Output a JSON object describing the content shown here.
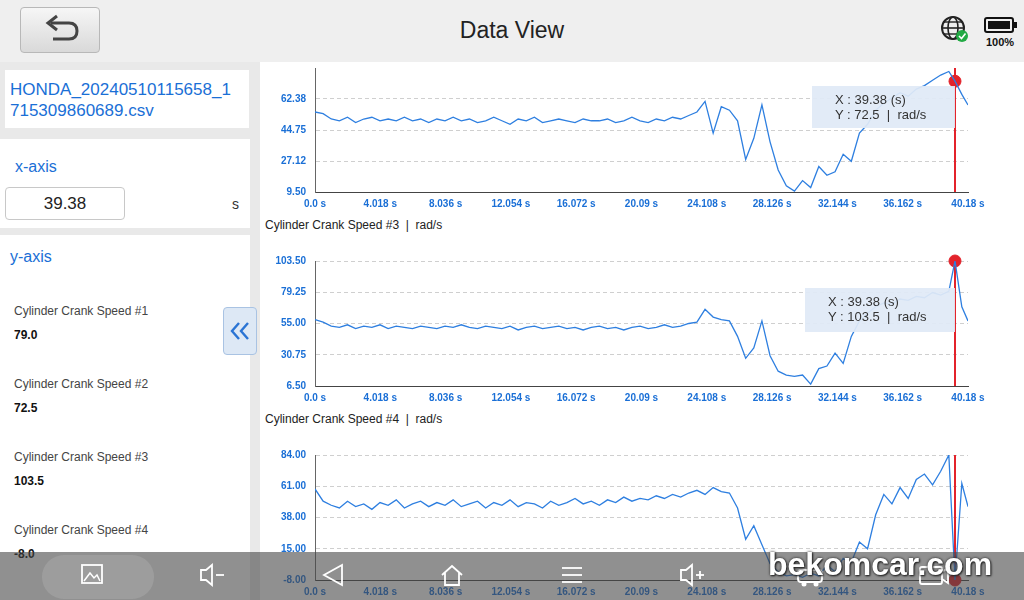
{
  "header": {
    "title": "Data View",
    "battery": "100%"
  },
  "sidebar": {
    "file": "HONDA_20240510115658_1715309860689.csv",
    "x_axis": {
      "title": "x-axis",
      "value": "39.38",
      "unit": "s"
    },
    "y_axis": {
      "title": "y-axis",
      "items": [
        {
          "name": "Cylinder Crank Speed #1",
          "value": "79.0"
        },
        {
          "name": "Cylinder Crank Speed #2",
          "value": "72.5"
        },
        {
          "name": "Cylinder Crank Speed #3",
          "value": "103.5"
        },
        {
          "name": "Cylinder Crank Speed #4",
          "value": "-8.0"
        }
      ]
    }
  },
  "chart_data": [
    {
      "type": "line",
      "x": [
        0,
        0.5,
        1,
        1.5,
        2,
        2.5,
        3,
        3.5,
        4,
        4.5,
        5,
        5.5,
        6,
        6.5,
        7,
        7.5,
        8,
        8.5,
        9,
        9.5,
        10,
        10.5,
        11,
        11.5,
        12,
        12.5,
        13,
        13.5,
        14,
        14.5,
        15,
        15.5,
        16,
        16.5,
        17,
        17.5,
        18,
        18.5,
        19,
        19.5,
        20,
        20.5,
        21,
        21.5,
        22,
        22.5,
        23,
        23.5,
        24,
        24.5,
        25,
        25.5,
        26,
        26.5,
        27,
        27.5,
        28,
        28.5,
        29,
        29.5,
        30,
        30.5,
        31,
        31.5,
        32,
        32.5,
        33,
        33.5,
        34,
        34.5,
        35,
        35.5,
        36,
        36.5,
        37,
        37.5,
        38,
        38.5,
        39,
        39.38,
        39.8,
        40.18
      ],
      "values": [
        55,
        54,
        51,
        50,
        52,
        49,
        51,
        52,
        50,
        51,
        50,
        52,
        50,
        51,
        49,
        51,
        50,
        52,
        50,
        51,
        49,
        50,
        52,
        50,
        48,
        51,
        50,
        52,
        49,
        50,
        51,
        50,
        49,
        51,
        50,
        50,
        51,
        49,
        50,
        52,
        50,
        49,
        51,
        50,
        52,
        51,
        53,
        55,
        61,
        43,
        58,
        56,
        50,
        28,
        40,
        59,
        38,
        22,
        13,
        10,
        16,
        12,
        24,
        19,
        21,
        31,
        27,
        43,
        48,
        56,
        60,
        63,
        66,
        64,
        68,
        70,
        73,
        76,
        78,
        72.5,
        65,
        59
      ],
      "color": "#2e7fe0",
      "xlim": [
        0,
        40.18
      ],
      "xticks": [
        {
          "value": 0,
          "label": "0.0 s"
        },
        {
          "value": 4.018,
          "label": "4.018 s"
        },
        {
          "value": 8.036,
          "label": "8.036 s"
        },
        {
          "value": 12.054,
          "label": "12.054 s"
        },
        {
          "value": 16.072,
          "label": "16.072 s"
        },
        {
          "value": 20.09,
          "label": "20.09 s"
        },
        {
          "value": 24.108,
          "label": "24.108 s"
        },
        {
          "value": 28.126,
          "label": "28.126 s"
        },
        {
          "value": 32.144,
          "label": "32.144 s"
        },
        {
          "value": 36.162,
          "label": "36.162 s"
        },
        {
          "value": 40.18,
          "label": "40.18 s"
        }
      ],
      "ylim": [
        9.5,
        80
      ],
      "yticks": [
        {
          "value": 9.5,
          "label": "9.50"
        },
        27.12,
        44.75,
        62.38
      ],
      "grid": true,
      "cursor": {
        "x": 39.38,
        "y": 72.5,
        "text": [
          "X : 39.38 (s)",
          "Y : 72.5  |  rad/s"
        ]
      }
    },
    {
      "type": "line",
      "title": "Cylinder Crank Speed #3  |  rad/s",
      "x": [
        0,
        0.5,
        1,
        1.5,
        2,
        2.5,
        3,
        3.5,
        4,
        4.5,
        5,
        5.5,
        6,
        6.5,
        7,
        7.5,
        8,
        8.5,
        9,
        9.5,
        10,
        10.5,
        11,
        11.5,
        12,
        12.5,
        13,
        13.5,
        14,
        14.5,
        15,
        15.5,
        16,
        16.5,
        17,
        17.5,
        18,
        18.5,
        19,
        19.5,
        20,
        20.5,
        21,
        21.5,
        22,
        22.5,
        23,
        23.5,
        24,
        24.5,
        25,
        25.5,
        26,
        26.5,
        27,
        27.5,
        28,
        28.5,
        29,
        29.5,
        30,
        30.5,
        31,
        31.5,
        32,
        32.5,
        33,
        33.5,
        34,
        34.5,
        35,
        35.5,
        36,
        36.5,
        37,
        37.5,
        38,
        38.5,
        39,
        39.38,
        39.8,
        40.18
      ],
      "values": [
        58,
        56,
        53,
        52,
        54,
        51,
        53,
        52,
        54,
        51,
        53,
        52,
        51,
        53,
        52,
        51,
        53,
        52,
        54,
        52,
        51,
        53,
        52,
        51,
        53,
        50,
        52,
        53,
        51,
        52,
        53,
        51,
        52,
        50,
        52,
        53,
        51,
        52,
        50,
        52,
        53,
        51,
        52,
        54,
        52,
        53,
        55,
        56,
        66,
        60,
        58,
        57,
        45,
        28,
        36,
        57,
        30,
        18,
        15,
        14,
        15,
        8,
        20,
        22,
        32,
        24,
        45,
        57,
        63,
        68,
        71,
        70,
        74,
        73,
        76,
        75,
        79,
        77,
        80,
        103.5,
        68,
        57
      ],
      "color": "#2e7fe0",
      "xlim": [
        0,
        40.18
      ],
      "xticks": [
        {
          "value": 0,
          "label": "0.0 s"
        },
        {
          "value": 4.018,
          "label": "4.018 s"
        },
        {
          "value": 8.036,
          "label": "8.036 s"
        },
        {
          "value": 12.054,
          "label": "12.054 s"
        },
        {
          "value": 16.072,
          "label": "16.072 s"
        },
        {
          "value": 20.09,
          "label": "20.09 s"
        },
        {
          "value": 24.108,
          "label": "24.108 s"
        },
        {
          "value": 28.126,
          "label": "28.126 s"
        },
        {
          "value": 32.144,
          "label": "32.144 s"
        },
        {
          "value": 36.162,
          "label": "36.162 s"
        },
        {
          "value": 40.18,
          "label": "40.18 s"
        }
      ],
      "ylim": [
        6.5,
        103.5
      ],
      "yticks": [
        {
          "value": 6.5,
          "label": "6.50"
        },
        30.75,
        {
          "value": 55,
          "label": "55.00"
        },
        79.25,
        {
          "value": 103.5,
          "label": "103.50"
        }
      ],
      "grid": true,
      "cursor": {
        "x": 39.38,
        "y": 103.5,
        "text": [
          "X : 39.38 (s)",
          "Y : 103.5  |  rad/s"
        ]
      }
    },
    {
      "type": "line",
      "title": "Cylinder Crank Speed #4  |  rad/s",
      "x": [
        0,
        0.5,
        1,
        1.5,
        2,
        2.5,
        3,
        3.5,
        4,
        4.5,
        5,
        5.5,
        6,
        6.5,
        7,
        7.5,
        8,
        8.5,
        9,
        9.5,
        10,
        10.5,
        11,
        11.5,
        12,
        12.5,
        13,
        13.5,
        14,
        14.5,
        15,
        15.5,
        16,
        16.5,
        17,
        17.5,
        18,
        18.5,
        19,
        19.5,
        20,
        20.5,
        21,
        21.5,
        22,
        22.5,
        23,
        23.5,
        24,
        24.5,
        25,
        25.5,
        26,
        26.5,
        27,
        27.5,
        28,
        28.5,
        29,
        29.5,
        30,
        30.5,
        31,
        31.5,
        32,
        32.5,
        33,
        33.5,
        34,
        34.5,
        35,
        35.5,
        36,
        36.5,
        37,
        37.5,
        38,
        38.5,
        39,
        39.38,
        39.8,
        40.18
      ],
      "values": [
        59,
        50,
        47,
        45,
        50,
        46,
        48,
        44,
        49,
        47,
        51,
        45,
        48,
        50,
        46,
        49,
        47,
        51,
        46,
        48,
        50,
        45,
        49,
        47,
        51,
        46,
        49,
        48,
        45,
        50,
        47,
        49,
        52,
        48,
        50,
        47,
        51,
        49,
        53,
        50,
        52,
        51,
        54,
        52,
        55,
        53,
        56,
        58,
        55,
        60,
        57,
        56,
        45,
        22,
        32,
        18,
        4,
        -2,
        -5,
        -4,
        -6,
        -3,
        -5,
        3,
        -2,
        8,
        5,
        20,
        15,
        40,
        55,
        48,
        60,
        52,
        66,
        70,
        62,
        72,
        84,
        -8,
        63,
        46
      ],
      "color": "#2e7fe0",
      "xlim": [
        0,
        40.18
      ],
      "xticks": [
        {
          "value": 0,
          "label": "0.0 s"
        },
        {
          "value": 4.018,
          "label": "4.018 s"
        },
        {
          "value": 8.036,
          "label": "8.036 s"
        },
        {
          "value": 12.054,
          "label": "12.054 s"
        },
        {
          "value": 16.072,
          "label": "16.072 s"
        },
        {
          "value": 20.09,
          "label": "20.09 s"
        },
        {
          "value": 24.108,
          "label": "24.108 s"
        },
        {
          "value": 28.126,
          "label": "28.126 s"
        },
        {
          "value": 32.144,
          "label": "32.144 s"
        },
        {
          "value": 36.162,
          "label": "36.162 s"
        },
        {
          "value": 40.18,
          "label": "40.18 s"
        }
      ],
      "ylim": [
        -8,
        84
      ],
      "yticks": [
        {
          "value": -8,
          "label": "-8.00"
        },
        {
          "value": 15,
          "label": "15.00"
        },
        {
          "value": 38,
          "label": "38.00"
        },
        {
          "value": 61,
          "label": "61.00"
        },
        {
          "value": 84,
          "label": "84.00"
        }
      ],
      "grid": true,
      "cursor": {
        "x": 39.38,
        "y": -8
      }
    }
  ],
  "watermark": "bekomcar.com"
}
